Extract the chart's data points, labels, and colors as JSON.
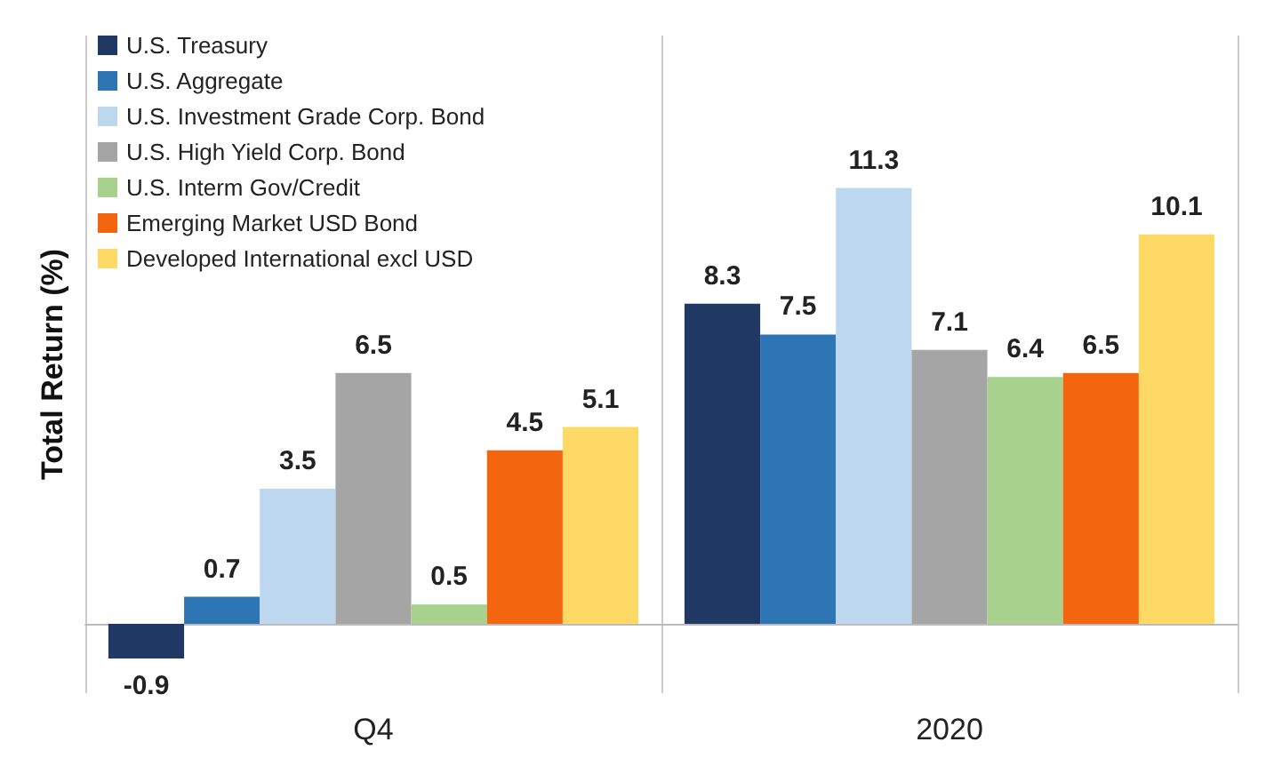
{
  "chart_data": {
    "type": "bar",
    "ylabel": "Total Return (%)",
    "categories": [
      "Q4",
      "2020"
    ],
    "series": [
      {
        "name": "U.S. Treasury",
        "color": "#1f3864",
        "values": [
          -0.9,
          8.3
        ]
      },
      {
        "name": "U.S. Aggregate",
        "color": "#2e75b6",
        "values": [
          0.7,
          7.5
        ]
      },
      {
        "name": "U.S. Investment Grade Corp. Bond",
        "color": "#bdd7ee",
        "values": [
          3.5,
          11.3
        ]
      },
      {
        "name": "U.S. High Yield Corp. Bond",
        "color": "#a5a5a5",
        "values": [
          6.5,
          7.1
        ]
      },
      {
        "name": "U.S. Interm Gov/Credit",
        "color": "#a9d18e",
        "values": [
          0.5,
          6.4
        ]
      },
      {
        "name": "Emerging Market USD Bond",
        "color": "#f4650f",
        "values": [
          4.5,
          6.5
        ]
      },
      {
        "name": "Developed International excl USD",
        "color": "#ffd966",
        "values": [
          5.1,
          10.1
        ]
      }
    ],
    "data_labels": true,
    "legend": "top left",
    "grid": "x"
  }
}
